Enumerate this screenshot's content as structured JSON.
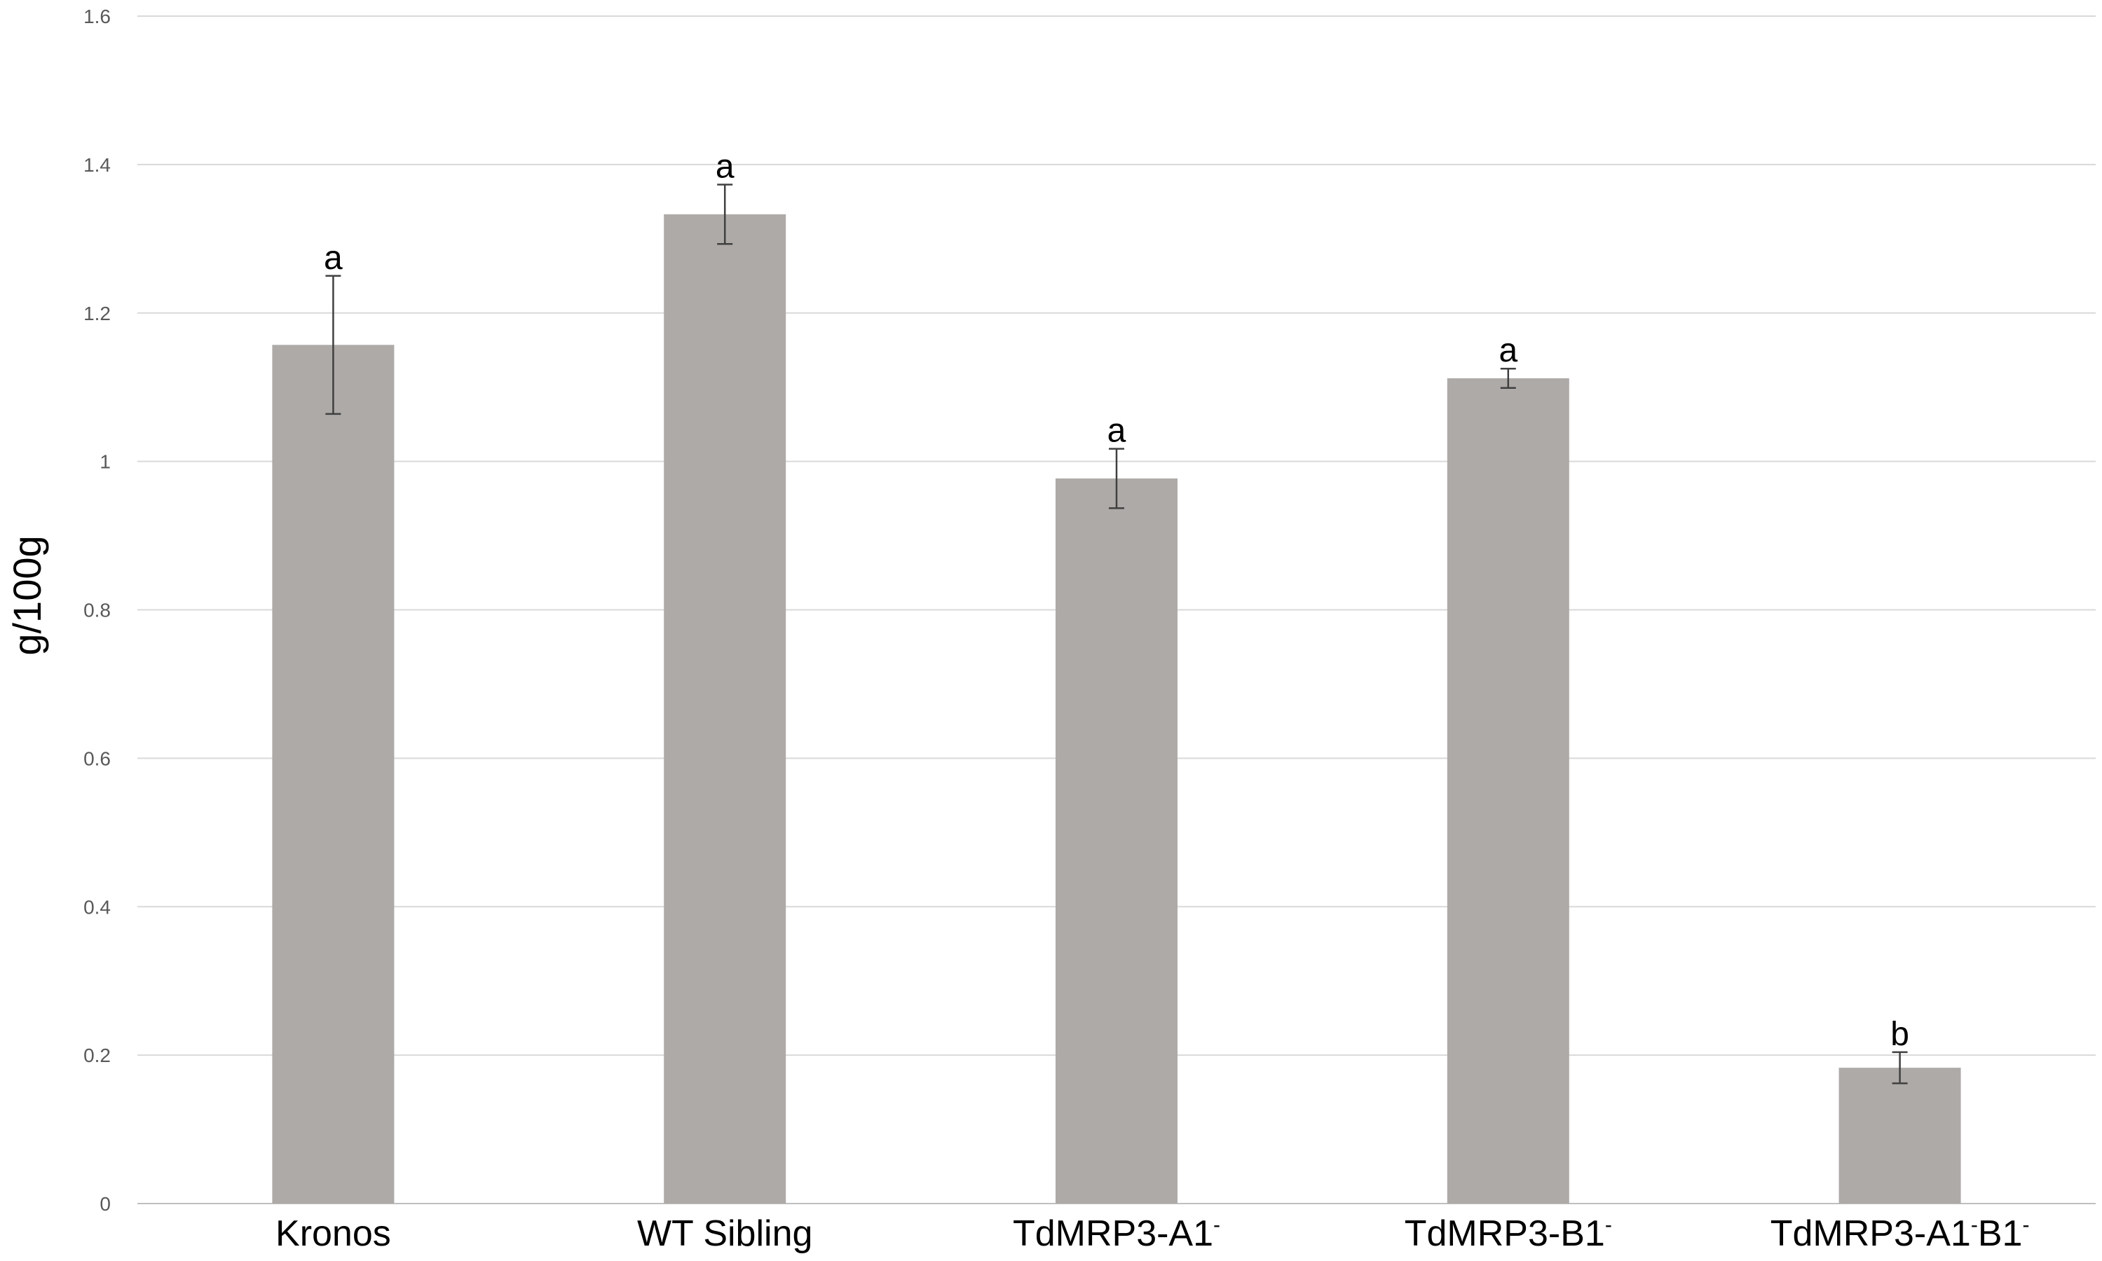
{
  "chart_data": {
    "type": "bar",
    "title": "",
    "xlabel": "",
    "ylabel": "g/100g",
    "ylim": [
      0,
      1.6
    ],
    "yticks": [
      "0",
      "0.2",
      "0.4",
      "0.6",
      "0.8",
      "1",
      "1.2",
      "1.4",
      "1.6"
    ],
    "grid": true,
    "legend": "none",
    "bar_color": "#AEAAA8",
    "categories": [
      {
        "base": "Kronos",
        "sup": "",
        "rest": ""
      },
      {
        "base": "WT Sibling",
        "sup": "",
        "rest": ""
      },
      {
        "base": "TdMRP3-A1",
        "sup": "-",
        "rest": ""
      },
      {
        "base": "TdMRP3-B1",
        "sup": "-",
        "rest": ""
      },
      {
        "base": "TdMRP3-A1",
        "sup": "-",
        "rest": "B1",
        "sup2": "-"
      }
    ],
    "values": [
      1.157,
      1.333,
      0.977,
      1.112,
      0.183
    ],
    "error": [
      0.093,
      0.04,
      0.04,
      0.013,
      0.021
    ],
    "significance": [
      "a",
      "a",
      "a",
      "a",
      "b"
    ]
  }
}
